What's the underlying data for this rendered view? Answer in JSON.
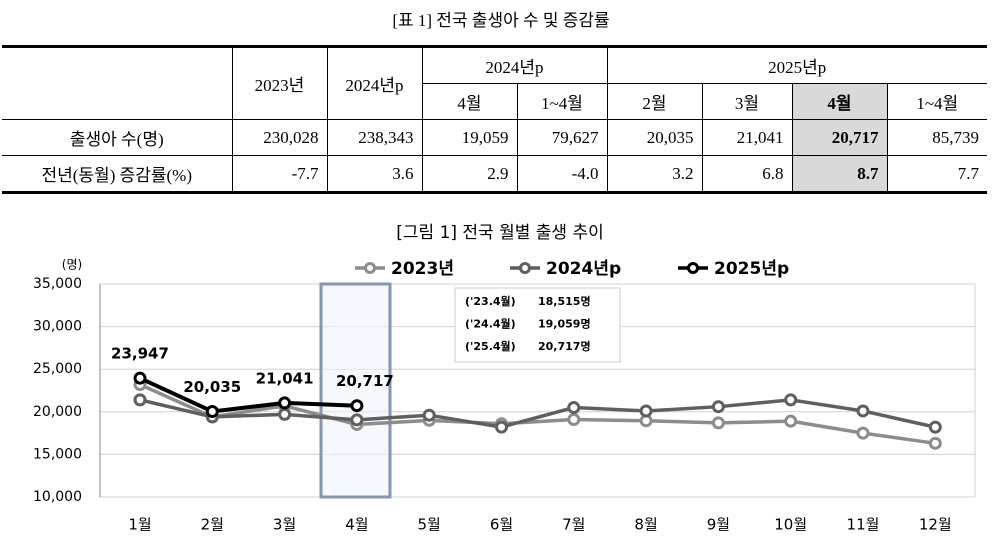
{
  "table": {
    "title": "[표 1] 전국 출생아 수 및 증감률",
    "header_top": [
      "2023년",
      "2024년p",
      "2024년p",
      "2025년p"
    ],
    "header_sub": [
      "4월",
      "1~4월",
      "2월",
      "3월",
      "4월",
      "1~4월"
    ],
    "rows": [
      [
        "출생아 수(명)",
        "230,028",
        "238,343",
        "19,059",
        "79,627",
        "20,035",
        "21,041",
        "20,717",
        "85,739"
      ],
      [
        "전년(동월) 증감률(%)",
        "-7.7",
        "3.6",
        "2.9",
        "-4.0",
        "3.2",
        "6.8",
        "8.7",
        "7.7"
      ]
    ]
  },
  "chart_data": {
    "type": "line",
    "title": "[그림 1] 전국 월별 출생 추이",
    "y_label": "(명)",
    "categories": [
      "1월",
      "2월",
      "3월",
      "4월",
      "5월",
      "6월",
      "7월",
      "8월",
      "9월",
      "10월",
      "11월",
      "12월"
    ],
    "ylim": [
      10000,
      35000
    ],
    "yticks": [
      {
        "value": 10000,
        "label": "10,000"
      },
      {
        "value": 15000,
        "label": "15,000"
      },
      {
        "value": 20000,
        "label": "20,000"
      },
      {
        "value": 25000,
        "label": "25,000"
      },
      {
        "value": 30000,
        "label": "30,000"
      },
      {
        "value": 35000,
        "label": "35,000"
      }
    ],
    "grid": true,
    "series": [
      {
        "name": "2023년",
        "color": "#8c8c8c",
        "values": [
          23200,
          19400,
          20700,
          18515,
          19000,
          18600,
          19100,
          18950,
          18700,
          18900,
          17500,
          16300
        ]
      },
      {
        "name": "2024년p",
        "color": "#5f5f5f",
        "values": [
          21400,
          19400,
          19700,
          19059,
          19600,
          18200,
          20500,
          20100,
          20600,
          21400,
          20100,
          18200
        ]
      },
      {
        "name": "2025년p",
        "color": "#000000",
        "values": [
          23947,
          20035,
          21041,
          20717,
          null,
          null,
          null,
          null,
          null,
          null,
          null,
          null
        ],
        "value_labels": [
          "23,947",
          "20,035",
          "21,041",
          "20,717",
          null,
          null,
          null,
          null,
          null,
          null,
          null,
          null
        ]
      }
    ],
    "annotations": [
      {
        "label": "('23.4월)",
        "text": "18,515명"
      },
      {
        "label": "('24.4월)",
        "text": "19,059명"
      },
      {
        "label": "('25.4월)",
        "text": "20,717명"
      }
    ]
  }
}
